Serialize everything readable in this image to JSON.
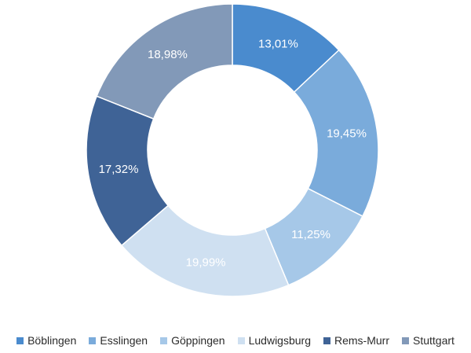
{
  "chart_data": {
    "type": "pie",
    "donut": true,
    "categories": [
      "Böblingen",
      "Esslingen",
      "Göppingen",
      "Ludwigsburg",
      "Rems-Murr",
      "Stuttgart"
    ],
    "values": [
      13.01,
      19.45,
      11.25,
      19.99,
      17.32,
      18.98
    ],
    "value_labels": [
      "13,01%",
      "19,45%",
      "11,25%",
      "19,99%",
      "17,32%",
      "18,98%"
    ],
    "colors": [
      "#4a8bce",
      "#7aabdb",
      "#a6c8e8",
      "#cfe0f1",
      "#3f6396",
      "#8299b8"
    ],
    "legend_position": "bottom"
  }
}
